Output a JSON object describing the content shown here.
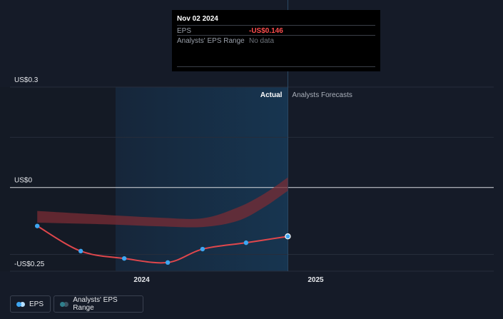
{
  "tooltip": {
    "date": "Nov 02 2024",
    "rows": [
      {
        "label": "EPS",
        "value": "-US$0.146"
      },
      {
        "label": "Analysts' EPS Range",
        "value": "No data"
      }
    ]
  },
  "legend": {
    "eps": "EPS",
    "range": "Analysts' EPS Range"
  },
  "regions": {
    "actual": "Actual",
    "forecast": "Analysts Forecasts"
  },
  "colors": {
    "background": "#151b28",
    "eps_line": "#e0474c",
    "eps_point": "#3ea6f2",
    "range_band": "#7a2c34",
    "actual_shade": "#173550",
    "legend_eps_a": "#3ea6f2",
    "legend_eps_b": "#b8e0ff",
    "legend_range_a": "#2f7f8c",
    "legend_range_b": "#3f5361"
  },
  "chart_data": {
    "type": "line",
    "x_ticks": [
      {
        "label": "2024",
        "value": 2024.0
      },
      {
        "label": "2025",
        "value": 2025.0
      }
    ],
    "y_ticks": [
      {
        "label": "US$0.3",
        "value": 0.3
      },
      {
        "label": "US$0",
        "value": 0.0
      },
      {
        "label": "-US$0.25",
        "value": -0.25
      }
    ],
    "xlim": [
      2023.35,
      2025.65
    ],
    "ylim": [
      -0.25,
      0.3
    ],
    "actual_start": 2023.85,
    "actual_end": 2024.84,
    "series": [
      {
        "points": [
          {
            "x": 2023.4,
            "y": -0.115
          },
          {
            "x": 2023.65,
            "y": -0.19
          },
          {
            "x": 2023.9,
            "y": -0.212
          },
          {
            "x": 2024.15,
            "y": -0.224
          },
          {
            "x": 2024.35,
            "y": -0.184
          },
          {
            "x": 2024.6,
            "y": -0.165
          },
          {
            "x": 2024.84,
            "y": -0.146
          }
        ]
      }
    ],
    "range_band": [
      {
        "x": 2023.4,
        "lo": -0.105,
        "hi": -0.07
      },
      {
        "x": 2023.8,
        "lo": -0.11,
        "hi": -0.082
      },
      {
        "x": 2024.1,
        "lo": -0.116,
        "hi": -0.09
      },
      {
        "x": 2024.35,
        "lo": -0.118,
        "hi": -0.092
      },
      {
        "x": 2024.55,
        "lo": -0.1,
        "hi": -0.06
      },
      {
        "x": 2024.7,
        "lo": -0.06,
        "hi": -0.02
      },
      {
        "x": 2024.84,
        "lo": -0.01,
        "hi": 0.03
      }
    ],
    "grid": true,
    "legend": "bottom-left"
  }
}
